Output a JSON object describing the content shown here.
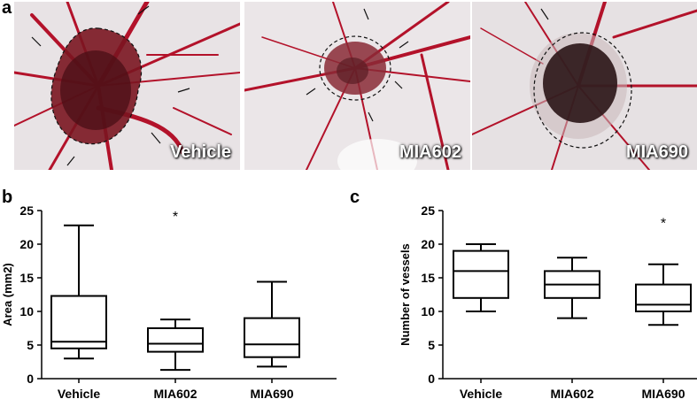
{
  "panels": {
    "a": "a",
    "b": "b",
    "c": "c"
  },
  "photos": [
    {
      "label": "Vehicle"
    },
    {
      "label": "MIA602"
    },
    {
      "label": "MIA690"
    }
  ],
  "colors": {
    "vessel": "#b3122a",
    "membrane": "#e9e4e6",
    "tumor_dark": "#2a1416"
  },
  "chart_data": [
    {
      "type": "boxplot",
      "categories": [
        "Vehicle",
        "MIA602",
        "MIA690"
      ],
      "ylabel": "Area (mm2)",
      "ylim": [
        0,
        25
      ],
      "yticks": [
        0,
        5,
        10,
        15,
        20,
        25
      ],
      "boxes": [
        {
          "min": 3.0,
          "q1": 4.5,
          "median": 5.5,
          "q3": 12.3,
          "max": 22.8
        },
        {
          "min": 1.3,
          "q1": 4.0,
          "median": 5.2,
          "q3": 7.5,
          "max": 8.8
        },
        {
          "min": 1.8,
          "q1": 3.2,
          "median": 5.1,
          "q3": 9.0,
          "max": 14.4
        }
      ],
      "annotations": [
        {
          "category": "MIA602",
          "text": "*",
          "y": 24.5
        }
      ]
    },
    {
      "type": "boxplot",
      "categories": [
        "Vehicle",
        "MIA602",
        "MIA690"
      ],
      "ylabel": "Number of vessels",
      "ylim": [
        0,
        25
      ],
      "yticks": [
        0,
        5,
        10,
        15,
        20,
        25
      ],
      "boxes": [
        {
          "min": 10,
          "q1": 12,
          "median": 16,
          "q3": 19,
          "max": 20
        },
        {
          "min": 9,
          "q1": 12,
          "median": 14,
          "q3": 16,
          "max": 18
        },
        {
          "min": 8,
          "q1": 10,
          "median": 11,
          "q3": 14,
          "max": 17
        }
      ],
      "annotations": [
        {
          "category": "MIA690",
          "text": "*",
          "y": 23.5
        }
      ]
    }
  ]
}
